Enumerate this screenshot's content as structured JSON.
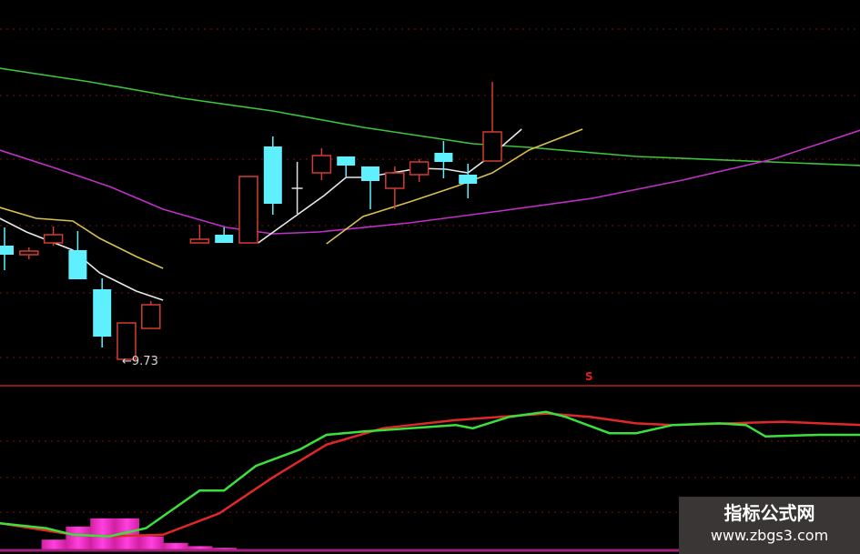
{
  "chart_data": [
    {
      "type": "candlestick",
      "panel": "price",
      "annotations": [
        {
          "label": "9.73",
          "candle_index": 5,
          "text": "←9.73"
        }
      ],
      "colors": {
        "up": "#d23c32",
        "down": "#5ff0ff",
        "doji": "#e0e0e0"
      },
      "candles": [
        {
          "i": 0,
          "o": 10.98,
          "h": 11.18,
          "l": 10.71,
          "c": 10.88
        },
        {
          "i": 1,
          "o": 10.88,
          "h": 10.96,
          "l": 10.83,
          "c": 10.92
        },
        {
          "i": 2,
          "o": 11.01,
          "h": 11.19,
          "l": 10.98,
          "c": 11.1
        },
        {
          "i": 3,
          "o": 10.93,
          "h": 11.14,
          "l": 10.61,
          "c": 10.61
        },
        {
          "i": 4,
          "o": 10.5,
          "h": 10.62,
          "l": 9.86,
          "c": 9.98
        },
        {
          "i": 5,
          "o": 9.73,
          "h": 10.13,
          "l": 9.73,
          "c": 10.13
        },
        {
          "i": 6,
          "o": 10.07,
          "h": 10.37,
          "l": 10.07,
          "c": 10.33
        },
        {
          "i": 8,
          "o": 11.01,
          "h": 11.21,
          "l": 11.01,
          "c": 11.05
        },
        {
          "i": 9,
          "o": 11.1,
          "h": 11.18,
          "l": 11.01,
          "c": 11.01
        },
        {
          "i": 10,
          "o": 11.01,
          "h": 11.74,
          "l": 11.01,
          "c": 11.74
        },
        {
          "i": 11,
          "o": 12.07,
          "h": 12.18,
          "l": 11.32,
          "c": 11.44
        },
        {
          "i": 12,
          "o": 11.61,
          "h": 11.9,
          "l": 11.33,
          "c": 11.61
        },
        {
          "i": 13,
          "o": 11.78,
          "h": 12.05,
          "l": 11.7,
          "c": 11.97
        },
        {
          "i": 14,
          "o": 11.96,
          "h": 11.96,
          "l": 11.73,
          "c": 11.86
        },
        {
          "i": 15,
          "o": 11.85,
          "h": 11.85,
          "l": 11.38,
          "c": 11.69
        },
        {
          "i": 16,
          "o": 11.61,
          "h": 11.85,
          "l": 11.38,
          "c": 11.78
        },
        {
          "i": 17,
          "o": 11.76,
          "h": 11.93,
          "l": 11.68,
          "c": 11.9
        },
        {
          "i": 18,
          "o": 12.0,
          "h": 12.13,
          "l": 11.72,
          "c": 11.9
        },
        {
          "i": 19,
          "o": 11.76,
          "h": 11.88,
          "l": 11.5,
          "c": 11.66
        },
        {
          "i": 20,
          "o": 11.91,
          "h": 12.78,
          "l": 11.91,
          "c": 12.23
        }
      ],
      "lines": [
        {
          "color": "#3cc43c",
          "segments": [
            [
              [
                -0.2,
                12.93
              ],
              [
                3.5,
                12.78
              ],
              [
                7.3,
                12.6
              ],
              [
                11,
                12.46
              ],
              [
                14.7,
                12.28
              ],
              [
                17.7,
                12.16
              ],
              [
                19.2,
                12.1
              ],
              [
                21.5,
                12.06
              ],
              [
                25.9,
                11.96
              ],
              [
                35.1,
                11.86
              ]
            ]
          ]
        },
        {
          "color": "#c030c8",
          "segments": [
            [
              [
                -0.2,
                12.03
              ],
              [
                2.1,
                11.83
              ],
              [
                4.3,
                11.63
              ],
              [
                6.5,
                11.38
              ],
              [
                9.1,
                11.18
              ],
              [
                11,
                11.11
              ],
              [
                12.9,
                11.13
              ],
              [
                16.6,
                11.23
              ],
              [
                20.3,
                11.36
              ],
              [
                24.1,
                11.5
              ],
              [
                27.8,
                11.7
              ],
              [
                31.5,
                11.93
              ],
              [
                35.1,
                12.25
              ]
            ]
          ]
        },
        {
          "color": "#d8c050",
          "segments": [
            [
              [
                -0.2,
                11.4
              ],
              [
                1.3,
                11.28
              ],
              [
                2.8,
                11.25
              ],
              [
                3.9,
                11.06
              ],
              [
                5.4,
                10.86
              ],
              [
                6.5,
                10.73
              ]
            ],
            [
              [
                13.2,
                11.0
              ],
              [
                14.7,
                11.3
              ],
              [
                16.6,
                11.46
              ],
              [
                18.5,
                11.63
              ],
              [
                20,
                11.78
              ],
              [
                21.5,
                12.03
              ],
              [
                23.7,
                12.26
              ]
            ]
          ]
        },
        {
          "color": "#e8e8e8",
          "segments": [
            [
              [
                -0.2,
                11.28
              ],
              [
                0.9,
                11.13
              ],
              [
                2.8,
                10.93
              ],
              [
                3.9,
                10.68
              ],
              [
                5.4,
                10.48
              ],
              [
                6.5,
                10.38
              ]
            ],
            [
              [
                10.4,
                11.01
              ],
              [
                11.8,
                11.28
              ],
              [
                13.1,
                11.53
              ],
              [
                14,
                11.73
              ],
              [
                14.7,
                11.73
              ],
              [
                15.9,
                11.78
              ],
              [
                17,
                11.83
              ],
              [
                18.1,
                11.82
              ],
              [
                19,
                11.78
              ],
              [
                20,
                11.98
              ],
              [
                21.2,
                12.26
              ]
            ]
          ]
        }
      ]
    },
    {
      "type": "line",
      "panel": "indicator",
      "signal_label": "S",
      "series": [
        {
          "color": "#3ce03c",
          "points": [
            [
              -0.2,
              16
            ],
            [
              1.7,
              13
            ],
            [
              2.8,
              9
            ],
            [
              4.3,
              8
            ],
            [
              5.8,
              13
            ],
            [
              8,
              36
            ],
            [
              9,
              36
            ],
            [
              10.3,
              51
            ],
            [
              12.1,
              61
            ],
            [
              13.2,
              70
            ],
            [
              14.7,
              72
            ],
            [
              18.5,
              76
            ],
            [
              19.2,
              74
            ],
            [
              20.7,
              81
            ],
            [
              22.2,
              84
            ],
            [
              23,
              81
            ],
            [
              24.8,
              71
            ],
            [
              25.9,
              71
            ],
            [
              27.4,
              76
            ],
            [
              29.3,
              77
            ],
            [
              30.4,
              76
            ],
            [
              31.2,
              69
            ],
            [
              33.4,
              70
            ],
            [
              35.1,
              70
            ]
          ]
        },
        {
          "color": "#e02828",
          "points": [
            [
              -0.2,
              16
            ],
            [
              2.8,
              9
            ],
            [
              4.3,
              8
            ],
            [
              6.5,
              9
            ],
            [
              8.8,
              22
            ],
            [
              11,
              44
            ],
            [
              13.2,
              64
            ],
            [
              15.5,
              74
            ],
            [
              18.5,
              79
            ],
            [
              22.2,
              83
            ],
            [
              24,
              81
            ],
            [
              25.9,
              77
            ],
            [
              27.4,
              76
            ],
            [
              29.7,
              77
            ],
            [
              31.9,
              78
            ],
            [
              35.1,
              76
            ]
          ]
        }
      ],
      "histogram": {
        "color": "#ff40e0",
        "values": [
          [
            2,
            6
          ],
          [
            3,
            14
          ],
          [
            4,
            19
          ],
          [
            5,
            19
          ],
          [
            6,
            8
          ],
          [
            7,
            4
          ],
          [
            8,
            2
          ],
          [
            9,
            1
          ]
        ]
      }
    }
  ],
  "watermark": {
    "title": "指标公式网",
    "url": "www.zbgs3.com"
  }
}
